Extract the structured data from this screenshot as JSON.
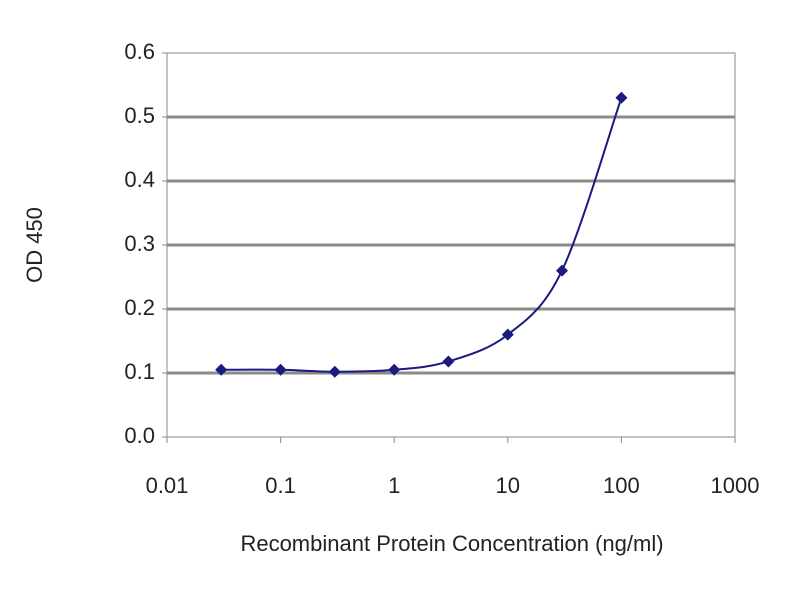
{
  "chart_data": {
    "type": "line",
    "x_label": "Recombinant Protein Concentration (ng/ml)",
    "y_label": "OD 450",
    "x": [
      0.03,
      0.1,
      0.3,
      1,
      3,
      10,
      30,
      100
    ],
    "values": [
      0.105,
      0.105,
      0.102,
      0.105,
      0.118,
      0.16,
      0.26,
      0.53
    ],
    "color": "#1a1a80",
    "x_scale": "log",
    "xlim": [
      0.01,
      1000
    ],
    "xticks": [
      0.01,
      0.1,
      1,
      10,
      100,
      1000
    ],
    "ylim": [
      0,
      0.6
    ],
    "yticks": [
      {
        "value": 0,
        "label": "0.0"
      },
      0.1,
      0.2,
      0.3,
      0.4,
      0.5,
      0.6
    ],
    "grid": true
  }
}
